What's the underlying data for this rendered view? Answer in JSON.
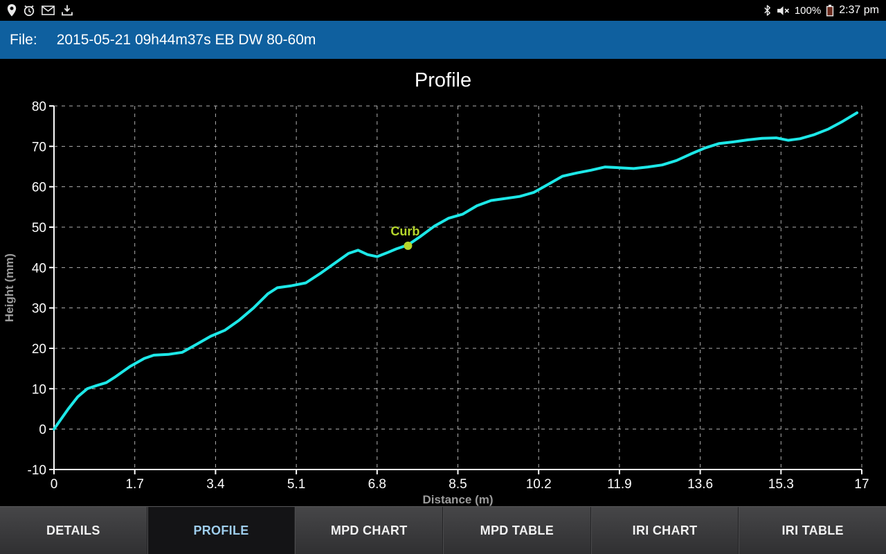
{
  "status_bar": {
    "time": "2:37 pm",
    "battery_percent": "100%",
    "icons_left": [
      "location-pin",
      "clock",
      "mail",
      "download"
    ],
    "icons_right": [
      "bluetooth",
      "volume-muted",
      "battery"
    ]
  },
  "header": {
    "file_label": "File:",
    "file_name": "2015-05-21 09h44m37s EB DW 80-60m",
    "background": "#0f609f"
  },
  "chart_data": {
    "type": "line",
    "title": "Profile",
    "xlabel": "Distance (m)",
    "ylabel": "Height (mm)",
    "xlim": [
      0,
      17
    ],
    "ylim": [
      -10,
      80
    ],
    "x_ticks": [
      0,
      1.7,
      3.4,
      5.1,
      6.8,
      8.5,
      10.2,
      11.9,
      13.6,
      15.3,
      17
    ],
    "y_ticks": [
      -10,
      0,
      10,
      20,
      30,
      40,
      50,
      60,
      70,
      80
    ],
    "grid": true,
    "legend": "none",
    "line_color": "#1de8e8",
    "background": "#000000",
    "series": [
      {
        "name": "profile",
        "points": [
          [
            0,
            0
          ],
          [
            0.15,
            2.5
          ],
          [
            0.3,
            5
          ],
          [
            0.5,
            8
          ],
          [
            0.7,
            10
          ],
          [
            0.9,
            10.8
          ],
          [
            1.1,
            11.5
          ],
          [
            1.3,
            13
          ],
          [
            1.6,
            15.5
          ],
          [
            1.9,
            17.5
          ],
          [
            2.1,
            18.3
          ],
          [
            2.4,
            18.5
          ],
          [
            2.7,
            19
          ],
          [
            3.0,
            21
          ],
          [
            3.3,
            23
          ],
          [
            3.6,
            24.5
          ],
          [
            3.9,
            27
          ],
          [
            4.2,
            30
          ],
          [
            4.5,
            33.5
          ],
          [
            4.7,
            35
          ],
          [
            5.0,
            35.5
          ],
          [
            5.3,
            36.2
          ],
          [
            5.6,
            38.5
          ],
          [
            5.9,
            41
          ],
          [
            6.2,
            43.5
          ],
          [
            6.4,
            44.3
          ],
          [
            6.6,
            43.2
          ],
          [
            6.8,
            42.7
          ],
          [
            7.0,
            43.6
          ],
          [
            7.2,
            44.6
          ],
          [
            7.45,
            45.6
          ],
          [
            7.7,
            47.6
          ],
          [
            8.0,
            50.2
          ],
          [
            8.3,
            52.2
          ],
          [
            8.6,
            53.2
          ],
          [
            8.9,
            55.3
          ],
          [
            9.2,
            56.6
          ],
          [
            9.5,
            57.1
          ],
          [
            9.8,
            57.6
          ],
          [
            10.1,
            58.6
          ],
          [
            10.4,
            60.6
          ],
          [
            10.7,
            62.6
          ],
          [
            11.0,
            63.4
          ],
          [
            11.3,
            64.1
          ],
          [
            11.6,
            64.9
          ],
          [
            11.9,
            64.7
          ],
          [
            12.2,
            64.5
          ],
          [
            12.5,
            64.9
          ],
          [
            12.8,
            65.4
          ],
          [
            13.1,
            66.5
          ],
          [
            13.4,
            68.1
          ],
          [
            13.7,
            69.6
          ],
          [
            14.0,
            70.7
          ],
          [
            14.3,
            71.1
          ],
          [
            14.6,
            71.6
          ],
          [
            14.9,
            72.0
          ],
          [
            15.2,
            72.1
          ],
          [
            15.45,
            71.5
          ],
          [
            15.7,
            71.9
          ],
          [
            16.0,
            72.9
          ],
          [
            16.3,
            74.3
          ],
          [
            16.6,
            76.2
          ],
          [
            16.9,
            78.3
          ]
        ]
      }
    ],
    "annotation": {
      "label": "Curb",
      "x": 7.45,
      "y": 45.4,
      "color": "#b5d62c"
    }
  },
  "tabs": [
    {
      "label": "DETAILS",
      "active": false
    },
    {
      "label": "PROFILE",
      "active": true
    },
    {
      "label": "MPD CHART",
      "active": false
    },
    {
      "label": "MPD TABLE",
      "active": false
    },
    {
      "label": "IRI CHART",
      "active": false
    },
    {
      "label": "IRI TABLE",
      "active": false
    }
  ],
  "colors": {
    "header_blue": "#0f609f",
    "active_tab_text": "#9ecdec",
    "line_cyan": "#1de8e8",
    "curb_green": "#b5d62c"
  }
}
